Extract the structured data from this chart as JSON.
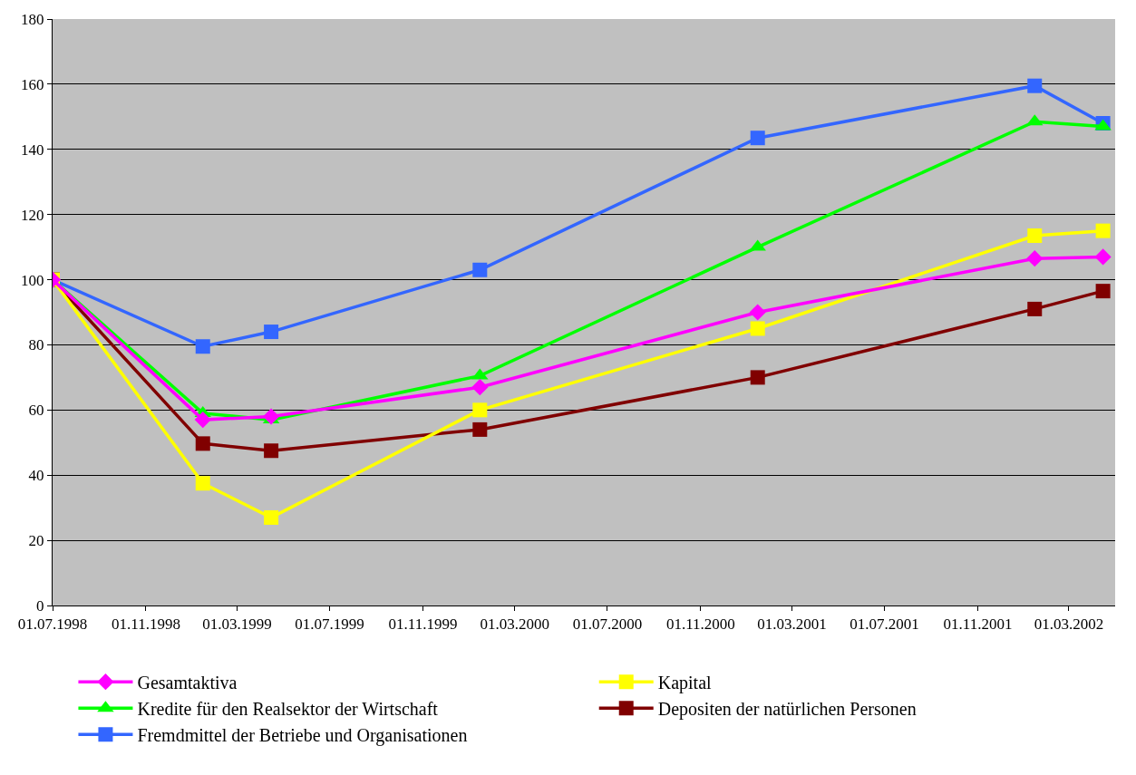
{
  "chart_data": {
    "type": "line",
    "x": [
      "1998-07-01",
      "1999-01-15",
      "1999-04-15",
      "2000-01-15",
      "2001-01-15",
      "2002-01-15",
      "2002-04-15"
    ],
    "series": [
      {
        "name": "Gesamtaktiva",
        "color": "#ff00ff",
        "marker": "diamond",
        "values": [
          100,
          57,
          58,
          67,
          90,
          106.5,
          107
        ]
      },
      {
        "name": "Kapital",
        "color": "#ffff00",
        "marker": "square",
        "values": [
          100,
          37.5,
          27,
          60,
          85,
          113.5,
          115
        ]
      },
      {
        "name": "Kredite für den Realsektor der Wirtschaft",
        "color": "#00ff00",
        "marker": "triangle",
        "values": [
          100,
          59,
          57,
          70.5,
          110,
          148.5,
          147
        ]
      },
      {
        "name": "Depositen der natürlichen Personen",
        "color": "#800000",
        "marker": "square",
        "values": [
          100,
          49.7,
          47.5,
          54,
          70,
          91,
          96.5
        ]
      },
      {
        "name": "Fremdmittel der Betriebe und Organisationen",
        "color": "#3366ff",
        "marker": "square",
        "values": [
          100,
          79.5,
          84,
          103,
          143.5,
          159.5,
          148
        ]
      }
    ],
    "xlim": [
      "1998-07-01",
      "2002-05-01"
    ],
    "xticks": [
      {
        "value": "1998-07-01",
        "label": "01.07.1998"
      },
      {
        "value": "1998-11-01",
        "label": "01.11.1998"
      },
      {
        "value": "1999-03-01",
        "label": "01.03.1999"
      },
      {
        "value": "1999-07-01",
        "label": "01.07.1999"
      },
      {
        "value": "1999-11-01",
        "label": "01.11.1999"
      },
      {
        "value": "2000-03-01",
        "label": "01.03.2000"
      },
      {
        "value": "2000-07-01",
        "label": "01.07.2000"
      },
      {
        "value": "2000-11-01",
        "label": "01.11.2000"
      },
      {
        "value": "2001-03-01",
        "label": "01.03.2001"
      },
      {
        "value": "2001-07-01",
        "label": "01.07.2001"
      },
      {
        "value": "2001-11-01",
        "label": "01.11.2001"
      },
      {
        "value": "2002-03-01",
        "label": "01.03.2002"
      }
    ],
    "ylim": [
      0,
      180
    ],
    "yticks": [
      0,
      20,
      40,
      60,
      80,
      100,
      120,
      140,
      160,
      180
    ],
    "grid": "y",
    "legend": "bottom",
    "line_style": "solid"
  }
}
